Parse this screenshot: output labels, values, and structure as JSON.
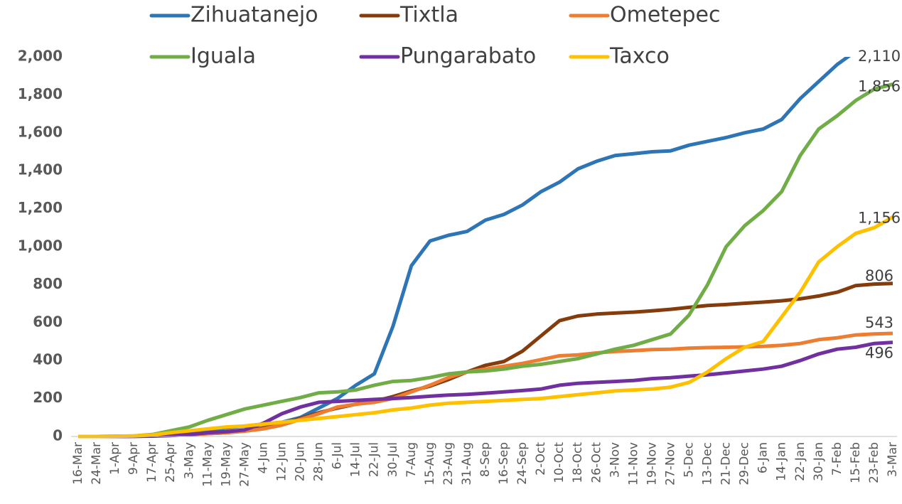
{
  "chart_data": {
    "type": "line",
    "categories": [
      "16-Mar",
      "24-Mar",
      "1-Apr",
      "9-Apr",
      "17-Apr",
      "25-Apr",
      "3-May",
      "11-May",
      "19-May",
      "27-May",
      "4-Jun",
      "12-Jun",
      "20-Jun",
      "28-Jun",
      "6-Jul",
      "14-Jul",
      "22-Jul",
      "30-Jul",
      "7-Aug",
      "15-Aug",
      "23-Aug",
      "31-Aug",
      "8-Sep",
      "16-Sep",
      "24-Sep",
      "2-Oct",
      "10-Oct",
      "18-Oct",
      "26-Oct",
      "3-Nov",
      "11-Nov",
      "19-Nov",
      "27-Nov",
      "5-Dec",
      "13-Dec",
      "21-Dec",
      "29-Dec",
      "6-Jan",
      "14-Jan",
      "22-Jan",
      "30-Jan",
      "7-Feb",
      "15-Feb",
      "23-Feb",
      "3-Mar"
    ],
    "ylim": [
      0,
      2000
    ],
    "yticks": [
      0,
      200,
      400,
      600,
      800,
      {
        "value": 1000,
        "label": "1,000"
      },
      {
        "value": 1200,
        "label": "1,200"
      },
      {
        "value": 1400,
        "label": "1,400"
      },
      {
        "value": 1600,
        "label": "1,600"
      },
      {
        "value": 1800,
        "label": "1,800"
      },
      {
        "value": 2000,
        "label": "2,000"
      }
    ],
    "series": [
      {
        "name": "Zihuatanejo",
        "color": "#2e75b6",
        "values": [
          0,
          0,
          1,
          2,
          5,
          15,
          25,
          35,
          45,
          55,
          65,
          75,
          100,
          150,
          200,
          270,
          330,
          580,
          900,
          1030,
          1060,
          1080,
          1140,
          1170,
          1220,
          1290,
          1340,
          1410,
          1450,
          1480,
          1490,
          1500,
          1505,
          1535,
          1555,
          1575,
          1600,
          1620,
          1670,
          1780,
          1870,
          1960,
          2030,
          2080,
          2110
        ],
        "value_labels": [
          null,
          null,
          null,
          null,
          null,
          null,
          null,
          null,
          null,
          null,
          null,
          null,
          null,
          null,
          null,
          null,
          null,
          null,
          null,
          null,
          null,
          null,
          null,
          null,
          null,
          null,
          null,
          null,
          null,
          null,
          null,
          null,
          null,
          null,
          null,
          null,
          null,
          null,
          null,
          null,
          null,
          null,
          null,
          null,
          "2,110"
        ]
      },
      {
        "name": "Tixtla",
        "color": "#843c0c",
        "values": [
          0,
          0,
          0,
          1,
          3,
          6,
          10,
          15,
          20,
          30,
          45,
          65,
          95,
          125,
          150,
          170,
          185,
          210,
          240,
          265,
          300,
          340,
          375,
          395,
          450,
          530,
          610,
          635,
          645,
          650,
          655,
          662,
          670,
          680,
          690,
          695,
          702,
          708,
          715,
          725,
          740,
          760,
          795,
          803,
          806
        ],
        "value_labels": [
          null,
          null,
          null,
          null,
          null,
          null,
          null,
          null,
          null,
          null,
          null,
          null,
          null,
          null,
          null,
          null,
          null,
          null,
          null,
          null,
          null,
          null,
          null,
          null,
          null,
          null,
          null,
          null,
          null,
          null,
          null,
          null,
          null,
          null,
          null,
          null,
          null,
          null,
          null,
          null,
          null,
          null,
          null,
          null,
          "806"
        ]
      },
      {
        "name": "Ometepec",
        "color": "#ed7d31",
        "values": [
          0,
          0,
          0,
          1,
          3,
          6,
          10,
          15,
          20,
          28,
          40,
          60,
          90,
          120,
          155,
          170,
          180,
          200,
          235,
          270,
          310,
          340,
          355,
          370,
          385,
          405,
          425,
          430,
          440,
          448,
          452,
          458,
          460,
          465,
          468,
          470,
          472,
          475,
          480,
          490,
          510,
          520,
          535,
          540,
          543
        ],
        "value_labels": [
          null,
          null,
          null,
          null,
          null,
          null,
          null,
          null,
          null,
          null,
          null,
          null,
          null,
          null,
          null,
          null,
          null,
          null,
          null,
          null,
          null,
          null,
          null,
          null,
          null,
          null,
          null,
          null,
          null,
          null,
          null,
          null,
          null,
          null,
          null,
          null,
          null,
          null,
          null,
          null,
          null,
          null,
          null,
          null,
          "543"
        ]
      },
      {
        "name": "Iguala",
        "color": "#70ad47",
        "values": [
          0,
          0,
          1,
          3,
          10,
          30,
          50,
          85,
          115,
          145,
          165,
          185,
          205,
          230,
          235,
          245,
          270,
          290,
          295,
          310,
          330,
          340,
          345,
          355,
          370,
          380,
          395,
          410,
          435,
          460,
          480,
          510,
          540,
          640,
          800,
          1000,
          1110,
          1190,
          1290,
          1480,
          1620,
          1690,
          1770,
          1830,
          1856
        ],
        "value_labels": [
          null,
          null,
          null,
          null,
          null,
          null,
          null,
          null,
          null,
          null,
          null,
          null,
          null,
          null,
          null,
          null,
          null,
          null,
          null,
          null,
          null,
          null,
          null,
          null,
          null,
          null,
          null,
          null,
          null,
          null,
          null,
          null,
          null,
          null,
          null,
          null,
          null,
          null,
          null,
          null,
          null,
          null,
          null,
          null,
          "1,856"
        ]
      },
      {
        "name": "Pungarabato",
        "color": "#7030a0",
        "values": [
          0,
          0,
          0,
          1,
          2,
          5,
          10,
          20,
          25,
          35,
          70,
          120,
          155,
          180,
          185,
          190,
          195,
          200,
          205,
          212,
          218,
          222,
          228,
          235,
          242,
          250,
          270,
          280,
          285,
          290,
          295,
          305,
          310,
          318,
          325,
          335,
          345,
          355,
          370,
          400,
          435,
          460,
          470,
          490,
          496
        ],
        "value_labels": [
          null,
          null,
          null,
          null,
          null,
          null,
          null,
          null,
          null,
          null,
          null,
          null,
          null,
          null,
          null,
          null,
          null,
          null,
          null,
          null,
          null,
          null,
          null,
          null,
          null,
          null,
          null,
          null,
          null,
          null,
          null,
          null,
          null,
          null,
          null,
          null,
          null,
          null,
          null,
          null,
          null,
          null,
          null,
          null,
          "496"
        ]
      },
      {
        "name": "Taxco",
        "color": "#ffc000",
        "values": [
          0,
          0,
          1,
          3,
          8,
          20,
          30,
          40,
          50,
          55,
          65,
          75,
          85,
          95,
          105,
          115,
          125,
          140,
          150,
          165,
          175,
          180,
          185,
          190,
          195,
          200,
          210,
          220,
          230,
          240,
          245,
          250,
          260,
          285,
          340,
          410,
          470,
          500,
          630,
          760,
          920,
          1000,
          1070,
          1100,
          1156
        ],
        "value_labels": [
          null,
          null,
          null,
          null,
          null,
          null,
          null,
          null,
          null,
          null,
          null,
          null,
          null,
          null,
          null,
          null,
          null,
          null,
          null,
          null,
          null,
          null,
          null,
          null,
          null,
          null,
          null,
          null,
          null,
          null,
          null,
          null,
          null,
          null,
          null,
          null,
          null,
          null,
          null,
          null,
          null,
          null,
          null,
          null,
          "1,156"
        ]
      }
    ]
  }
}
